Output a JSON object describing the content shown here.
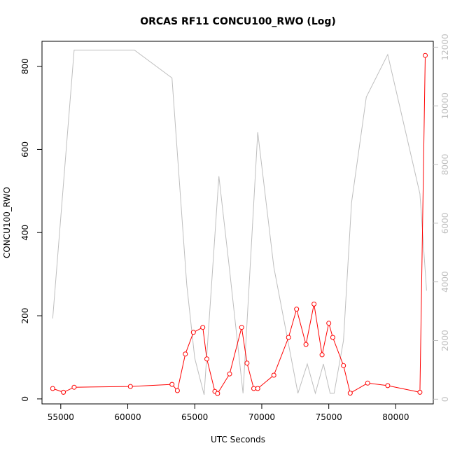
{
  "chart_data": {
    "type": "line",
    "title": "ORCAS RF11 CONCU100_RWO (Log)",
    "xlabel": "UTC Seconds",
    "ylabel": "CONCU100_RWO",
    "xlim": [
      53600,
      82800
    ],
    "ylim_left": [
      -12,
      860
    ],
    "ylim_right": [
      -160,
      12200
    ],
    "x_ticks": [
      55000,
      60000,
      65000,
      70000,
      75000,
      80000
    ],
    "y_ticks_left": [
      0,
      200,
      400,
      600,
      800
    ],
    "y_ticks_right": [
      0,
      2000,
      4000,
      6000,
      8000,
      10000,
      12000
    ],
    "grid": false,
    "colors": {
      "primary": "#ff0000",
      "secondary": "#bebebe",
      "axis": "#000000"
    },
    "series": [
      {
        "axis": "left",
        "style": "line+points",
        "x": [
          54400,
          55200,
          56000,
          60200,
          63300,
          63700,
          64300,
          64900,
          65600,
          65900,
          66500,
          66700,
          67600,
          68500,
          68900,
          69400,
          69700,
          70900,
          72000,
          72600,
          73300,
          73900,
          74500,
          75000,
          75300,
          76100,
          76600,
          77900,
          79400,
          81800,
          82200
        ],
        "values": [
          25,
          16,
          28,
          30,
          35,
          20,
          108,
          160,
          172,
          96,
          18,
          13,
          60,
          172,
          86,
          25,
          25,
          57,
          148,
          216,
          131,
          228,
          106,
          182,
          148,
          80,
          14,
          38,
          32,
          16,
          826
        ]
      },
      {
        "axis": "right",
        "style": "line",
        "x": [
          54400,
          56000,
          60500,
          63300,
          64400,
          65000,
          65700,
          66800,
          67600,
          68600,
          69700,
          70900,
          72700,
          73400,
          74000,
          74600,
          75100,
          75400,
          76100,
          76700,
          77800,
          79400,
          81800,
          82300
        ],
        "values": [
          2750,
          11900,
          11900,
          10950,
          3900,
          1400,
          150,
          7600,
          4400,
          200,
          9100,
          4500,
          200,
          1200,
          200,
          1200,
          200,
          200,
          2000,
          6700,
          10300,
          11750,
          7000,
          3700
        ]
      }
    ]
  }
}
